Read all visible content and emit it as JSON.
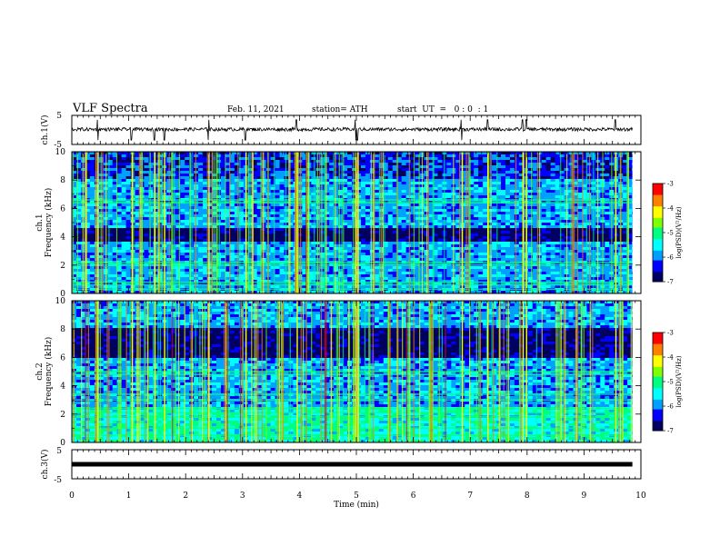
{
  "header": {
    "title": "VLF Spectra",
    "date": "Feb. 11, 2021",
    "station": "station= ATH",
    "start_ut": "start  UT  =   0 : 0  : 1"
  },
  "chart_data": [
    {
      "id": "ch1-waveform",
      "type": "line",
      "ylabel": "ch.1(V)",
      "yticks": [
        "5",
        "-5"
      ],
      "ylim": [
        -5,
        5
      ],
      "xlim": [
        0,
        10
      ],
      "data_end_min": 9.85,
      "baseline": 0.2,
      "noise_amplitude": 0.6,
      "spike_times_min": [
        0.45,
        1.05,
        1.45,
        1.62,
        2.4,
        3.05,
        3.95,
        4.98,
        5.02,
        6.85,
        7.3,
        7.92,
        7.98,
        9.55
      ]
    },
    {
      "id": "ch1-spectrogram",
      "type": "heatmap",
      "ylabel": "ch.1",
      "ylabel2": "Frequency (kHz)",
      "yticks": [
        "0",
        "2",
        "4",
        "6",
        "8",
        "10"
      ],
      "ylim": [
        0,
        10
      ],
      "xlim": [
        0,
        10
      ],
      "zlim": [
        -7,
        -3
      ],
      "colorbar_label": "log(PSD)(V²/Hz)",
      "colorbar_ticks": [
        "-3",
        "-4",
        "-5",
        "-6",
        "-7"
      ],
      "dark_band_khz": [
        3.6,
        4.6
      ],
      "persistent_lines_khz": [
        0.3,
        0.6,
        0.8,
        2.0,
        2.2,
        6.4,
        6.6
      ]
    },
    {
      "id": "ch2-spectrogram",
      "type": "heatmap",
      "ylabel": "ch.2",
      "ylabel2": "Frequency (kHz)",
      "yticks": [
        "0",
        "2",
        "4",
        "6",
        "8",
        "10"
      ],
      "ylim": [
        0,
        10
      ],
      "xlim": [
        0,
        10
      ],
      "zlim": [
        -7,
        -3
      ],
      "colorbar_label": "log(PSD)(V²/Hz)",
      "colorbar_ticks": [
        "-3",
        "-4",
        "-5",
        "-6",
        "-7"
      ],
      "dark_band_khz": [
        6.0,
        8.0
      ],
      "persistent_lines_khz": [
        0.5,
        1.0,
        1.8,
        2.1,
        2.4,
        3.0,
        3.4,
        4.8,
        5.0
      ]
    },
    {
      "id": "ch3-waveform",
      "type": "line",
      "ylabel": "ch.3(V)",
      "yticks": [
        "5",
        "-5"
      ],
      "ylim": [
        -5,
        5
      ],
      "xlim": [
        0,
        10
      ],
      "data_end_min": 9.85,
      "level": 0.0
    }
  ],
  "xaxis": {
    "label": "Time (min)",
    "ticks": [
      "0",
      "1",
      "2",
      "3",
      "4",
      "5",
      "6",
      "7",
      "8",
      "9",
      "10"
    ]
  },
  "colormap": [
    "#000060",
    "#0000ff",
    "#00a0ff",
    "#00ffff",
    "#00ff80",
    "#80ff00",
    "#ffff00",
    "#ff8000",
    "#ff0000"
  ]
}
